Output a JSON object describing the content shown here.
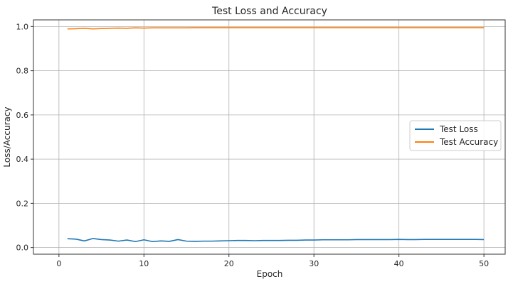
{
  "chart_data": {
    "type": "line",
    "title": "Test Loss and Accuracy",
    "xlabel": "Epoch",
    "ylabel": "Loss/Accuracy",
    "xlim": [
      -3,
      52.5
    ],
    "ylim": [
      -0.03,
      1.03
    ],
    "xticks": [
      0,
      10,
      20,
      30,
      40,
      50
    ],
    "yticks": [
      0.0,
      0.2,
      0.4,
      0.6,
      0.8,
      1.0
    ],
    "xtick_labels": [
      "0",
      "10",
      "20",
      "30",
      "40",
      "50"
    ],
    "ytick_labels": [
      "0.0",
      "0.2",
      "0.4",
      "0.6",
      "0.8",
      "1.0"
    ],
    "grid": true,
    "legend_position": "center-right",
    "x": [
      1,
      2,
      3,
      4,
      5,
      6,
      7,
      8,
      9,
      10,
      11,
      12,
      13,
      14,
      15,
      16,
      17,
      18,
      19,
      20,
      21,
      22,
      23,
      24,
      25,
      26,
      27,
      28,
      29,
      30,
      31,
      32,
      33,
      34,
      35,
      36,
      37,
      38,
      39,
      40,
      41,
      42,
      43,
      44,
      45,
      46,
      47,
      48,
      49,
      50
    ],
    "series": [
      {
        "name": "Test Loss",
        "color": "#1f77b4",
        "values": [
          0.04,
          0.038,
          0.03,
          0.041,
          0.036,
          0.034,
          0.029,
          0.034,
          0.027,
          0.035,
          0.027,
          0.03,
          0.028,
          0.036,
          0.029,
          0.028,
          0.029,
          0.029,
          0.03,
          0.031,
          0.032,
          0.032,
          0.031,
          0.032,
          0.032,
          0.032,
          0.033,
          0.033,
          0.034,
          0.034,
          0.035,
          0.035,
          0.035,
          0.035,
          0.036,
          0.036,
          0.036,
          0.036,
          0.036,
          0.037,
          0.036,
          0.036,
          0.037,
          0.037,
          0.037,
          0.037,
          0.037,
          0.037,
          0.037,
          0.036
        ]
      },
      {
        "name": "Test Accuracy",
        "color": "#ff7f0e",
        "values": [
          0.989,
          0.99,
          0.992,
          0.989,
          0.991,
          0.992,
          0.993,
          0.992,
          0.994,
          0.993,
          0.994,
          0.994,
          0.994,
          0.994,
          0.994,
          0.995,
          0.995,
          0.995,
          0.995,
          0.995,
          0.995,
          0.995,
          0.995,
          0.995,
          0.995,
          0.995,
          0.995,
          0.995,
          0.995,
          0.995,
          0.995,
          0.995,
          0.995,
          0.995,
          0.995,
          0.995,
          0.995,
          0.995,
          0.995,
          0.995,
          0.995,
          0.995,
          0.995,
          0.995,
          0.995,
          0.995,
          0.995,
          0.995,
          0.995,
          0.995
        ]
      }
    ]
  }
}
